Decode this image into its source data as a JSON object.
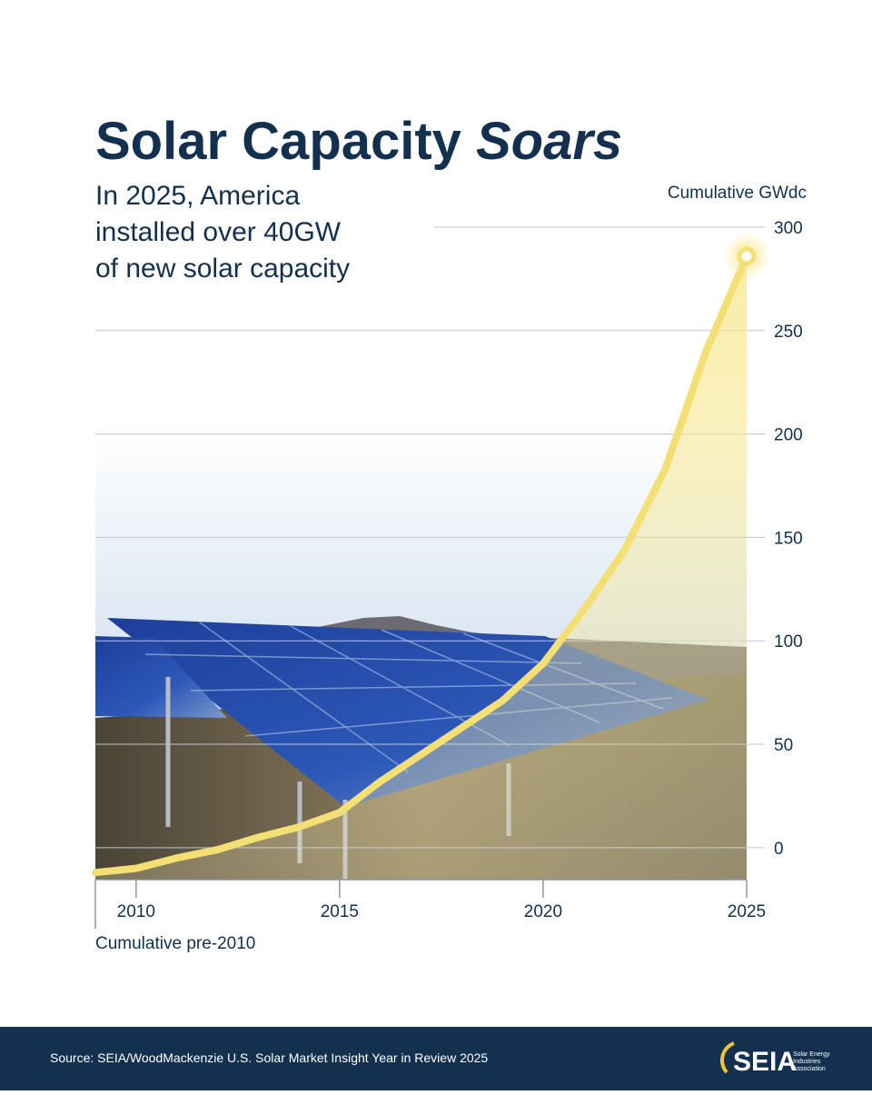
{
  "title": {
    "text": "Solar Capacity",
    "emphasis": "Soars"
  },
  "chart_data": {
    "type": "area",
    "subtitle_lines": [
      "In 2025, America",
      "installed over 40GW",
      "of new solar capacity"
    ],
    "y_label": "Cumulative GWdc",
    "categories": [
      "Cumulative pre-2010",
      "2010",
      null,
      null,
      null,
      null,
      "2015",
      null,
      null,
      null,
      null,
      "2020",
      null,
      null,
      null,
      null,
      "2025"
    ],
    "values": [
      -12,
      -10,
      -5,
      -1,
      5,
      10,
      17,
      32,
      45,
      58,
      71,
      89,
      115,
      144,
      183,
      240,
      286
    ],
    "color": "#f3df74",
    "ylim": [
      -15,
      300
    ],
    "yticks": [
      0,
      50,
      100,
      150,
      200,
      250,
      300
    ],
    "grid": true
  },
  "footer": {
    "source": "Source: SEIA/WoodMackenzie U.S. Solar Market Insight Year in Review 2025",
    "logo": "SEIA",
    "logo_tagline": [
      "Solar Energy",
      "Industries",
      "Association"
    ]
  }
}
